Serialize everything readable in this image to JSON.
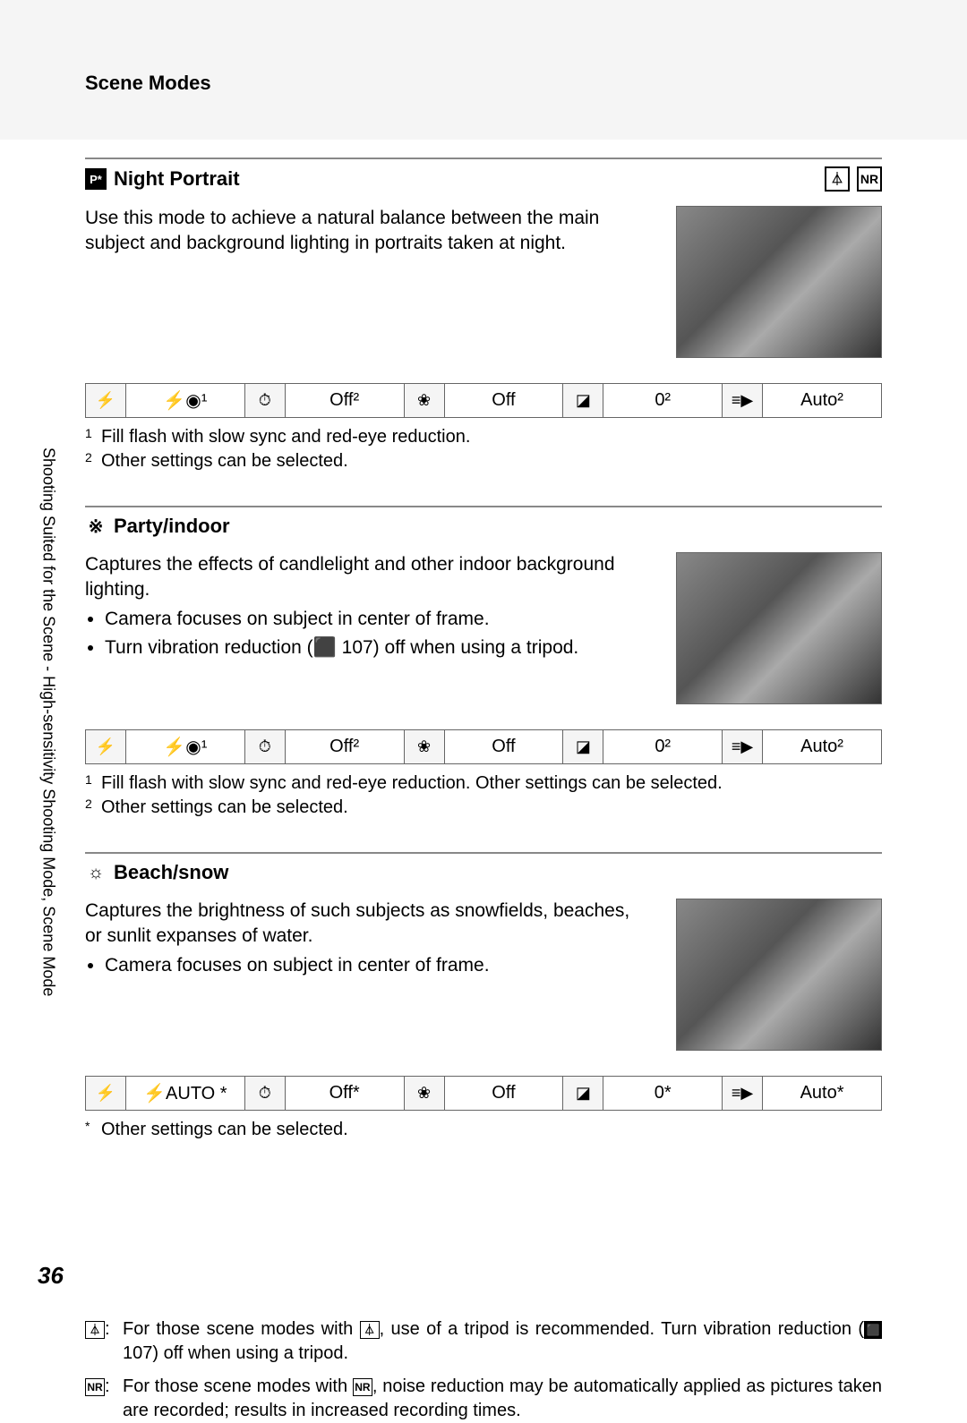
{
  "page": {
    "header_title": "Scene Modes",
    "side_tab": "Shooting Suited for the Scene - High-sensitivity Shooting Mode, Scene Mode",
    "page_number": "36"
  },
  "sections": [
    {
      "icon_label": "P*",
      "title": "Night Portrait",
      "header_icons": [
        "⏃",
        "NR"
      ],
      "description": "Use this mode to achieve a natural balance between the main subject and background lighting in portraits taken at night.",
      "bullets": [],
      "table": {
        "flash": "⚡◉¹",
        "timer": "Off²",
        "macro": "Off",
        "exposure": "0²",
        "af": "Auto²"
      },
      "footnotes": [
        {
          "mark": "1",
          "text": "Fill flash with slow sync and red-eye reduction."
        },
        {
          "mark": "2",
          "text": "Other settings can be selected."
        }
      ]
    },
    {
      "icon_label": "※",
      "title": "Party/indoor",
      "header_icons": [],
      "description": "Captures the effects of candlelight and other indoor background lighting.",
      "bullets": [
        "Camera focuses on subject in center of frame.",
        "Turn vibration reduction (⬛ 107) off when using a tripod."
      ],
      "table": {
        "flash": "⚡◉¹",
        "timer": "Off²",
        "macro": "Off",
        "exposure": "0²",
        "af": "Auto²"
      },
      "footnotes": [
        {
          "mark": "1",
          "text": "Fill flash with slow sync and red-eye reduction. Other settings can be selected."
        },
        {
          "mark": "2",
          "text": "Other settings can be selected."
        }
      ]
    },
    {
      "icon_label": "☼",
      "title": "Beach/snow",
      "header_icons": [],
      "description": "Captures the brightness of such subjects as snowfields, beaches, or sunlit expanses of water.",
      "bullets": [
        "Camera focuses on subject in center of frame."
      ],
      "table": {
        "flash": "⚡AUTO *",
        "timer": "Off*",
        "macro": "Off",
        "exposure": "0*",
        "af": "Auto*"
      },
      "footnotes": [
        {
          "mark": "*",
          "text": "Other settings can be selected."
        }
      ]
    }
  ],
  "table_icons": {
    "flash": "⚡",
    "timer": "⏱",
    "macro": "❀",
    "exposure": "◪",
    "af": "≡▶"
  },
  "bottom_notes": [
    {
      "icon": "⏃",
      "text_pre": "For those scene modes with ",
      "text_mid": ", use of a tripod is recommended. Turn vibration reduction (",
      "text_ref": " 107) off when using a tripod."
    },
    {
      "icon": "NR",
      "text_pre": "For those scene modes with ",
      "text_mid": ", noise reduction may be automatically applied as pictures taken are recorded; results in increased recording times.",
      "text_ref": ""
    }
  ]
}
